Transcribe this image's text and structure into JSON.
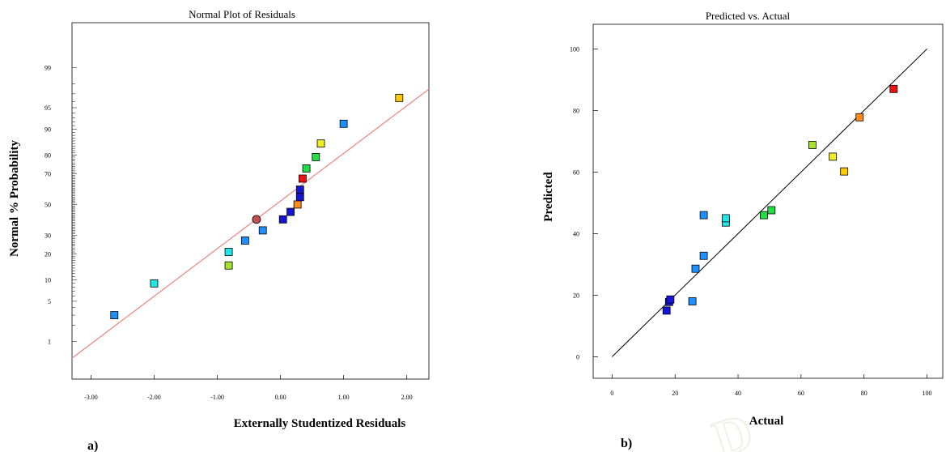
{
  "chart_data": [
    {
      "type": "scatter",
      "panel_label": "a)",
      "title": "Normal Plot of Residuals",
      "xlabel": "Externally Studentized Residuals",
      "ylabel": "Normal % Probability",
      "xlim": [
        -3.3,
        2.35
      ],
      "xticks": [
        -3,
        -2,
        -1,
        0,
        1,
        2
      ],
      "xtick_labels": [
        "-3.00",
        "-2.00",
        "-1.00",
        "0.00",
        "1.00",
        "2.00"
      ],
      "yscale": "normal-probability",
      "yticks": [
        1,
        5,
        10,
        20,
        30,
        50,
        70,
        80,
        90,
        95,
        99
      ],
      "ytick_labels": [
        "1",
        "5",
        "10",
        "20",
        "30",
        "50",
        "70",
        "80",
        "90",
        "95",
        "99"
      ],
      "ylim": [
        0.15,
        99.9
      ],
      "fit_line": {
        "color": "#f08080",
        "x": [
          -3.3,
          2.35
        ],
        "y": [
          0.45,
          97.5
        ]
      },
      "points": [
        {
          "x": -2.63,
          "y": 3.0,
          "color": "#1e90ff"
        },
        {
          "x": -2.0,
          "y": 9.0,
          "color": "#22e5e5"
        },
        {
          "x": -0.82,
          "y": 15.0,
          "color": "#a6e22e"
        },
        {
          "x": -0.82,
          "y": 21.0,
          "color": "#22e5e5"
        },
        {
          "x": -0.56,
          "y": 27.0,
          "color": "#1e90ff"
        },
        {
          "x": -0.28,
          "y": 33.0,
          "color": "#1e90ff"
        },
        {
          "x": -0.38,
          "y": 40.0,
          "color": "#c05050",
          "shape": "circle"
        },
        {
          "x": 0.04,
          "y": 40.0,
          "color": "#1515d8"
        },
        {
          "x": 0.16,
          "y": 45.0,
          "color": "#1515d8"
        },
        {
          "x": 0.27,
          "y": 50.0,
          "color": "#ff8c1a"
        },
        {
          "x": 0.31,
          "y": 55.0,
          "color": "#1515d8"
        },
        {
          "x": 0.31,
          "y": 60.0,
          "color": "#1515d8"
        },
        {
          "x": 0.35,
          "y": 67.0,
          "color": "#ee1111"
        },
        {
          "x": 0.41,
          "y": 73.0,
          "color": "#22dd44"
        },
        {
          "x": 0.56,
          "y": 79.0,
          "color": "#22dd44"
        },
        {
          "x": 0.64,
          "y": 85.0,
          "color": "#eeee22"
        },
        {
          "x": 1.0,
          "y": 91.5,
          "color": "#1e90ff"
        },
        {
          "x": 1.88,
          "y": 96.5,
          "color": "#ffcc00"
        }
      ]
    },
    {
      "type": "scatter",
      "panel_label": "b)",
      "title": "Predicted vs. Actual",
      "xlabel": "Actual",
      "ylabel": "Predicted",
      "xlim": [
        -6,
        105
      ],
      "ylim": [
        -7,
        108
      ],
      "xticks": [
        0,
        20,
        40,
        60,
        80,
        100
      ],
      "yticks": [
        0,
        20,
        40,
        60,
        80,
        100
      ],
      "xtick_labels": [
        "0",
        "20",
        "40",
        "60",
        "80",
        "100"
      ],
      "ytick_labels": [
        "0",
        "20",
        "40",
        "60",
        "80",
        "100"
      ],
      "reference_line": {
        "color": "#000000",
        "x": [
          0,
          100
        ],
        "y": [
          0,
          100
        ]
      },
      "points": [
        {
          "x": 17.3,
          "y": 15.0,
          "color": "#1515d8"
        },
        {
          "x": 18.1,
          "y": 17.8,
          "color": "#1515d8"
        },
        {
          "x": 18.5,
          "y": 18.6,
          "color": "#1515d8"
        },
        {
          "x": 25.5,
          "y": 18.0,
          "color": "#1e90ff"
        },
        {
          "x": 26.5,
          "y": 28.6,
          "color": "#1e90ff"
        },
        {
          "x": 29.1,
          "y": 32.8,
          "color": "#1e90ff"
        },
        {
          "x": 29.1,
          "y": 46.0,
          "color": "#1e90ff"
        },
        {
          "x": 36.1,
          "y": 43.6,
          "color": "#22e5e5"
        },
        {
          "x": 36.1,
          "y": 45.0,
          "color": "#22e5e5"
        },
        {
          "x": 48.2,
          "y": 46.0,
          "color": "#22dd44"
        },
        {
          "x": 50.6,
          "y": 47.6,
          "color": "#22dd44"
        },
        {
          "x": 63.6,
          "y": 68.8,
          "color": "#a6e22e"
        },
        {
          "x": 70.1,
          "y": 65.0,
          "color": "#eeee22"
        },
        {
          "x": 73.7,
          "y": 60.2,
          "color": "#ffcc00"
        },
        {
          "x": 78.6,
          "y": 77.8,
          "color": "#ff8c1a"
        },
        {
          "x": 89.4,
          "y": 87.0,
          "color": "#ee1111"
        }
      ]
    }
  ],
  "watermark": "D"
}
